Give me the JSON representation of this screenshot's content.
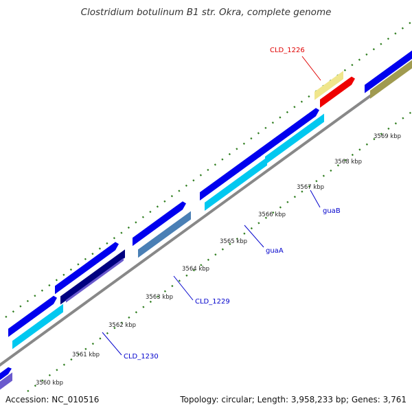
{
  "title": "Clostridium botulinum B1 str. Okra, complete genome",
  "accession": "Accession: NC_010516",
  "topology": "Topology: circular; Length: 3,958,233 bp; Genes: 3,761",
  "ruler": [
    "3560 kbp",
    "3561 kbp",
    "3562 kbp",
    "3563 kbp",
    "3564 kbp",
    "3565 kbp",
    "3566 kbp",
    "3567 kbp",
    "3568 kbp",
    "3569 kbp"
  ],
  "gene_labels": [
    {
      "name": "CLD_1226",
      "color": "#e00000"
    },
    {
      "name": "guaB",
      "color": "#0000cc"
    },
    {
      "name": "guaA",
      "color": "#0000cc"
    },
    {
      "name": "CLD_1229",
      "color": "#0000cc"
    },
    {
      "name": "CLD_1230",
      "color": "#0000cc"
    }
  ],
  "colors": {
    "backbone": "#888888",
    "cds_blue": "#0000ee",
    "cyan": "#00c8f0",
    "steelblue": "#4a7fb5",
    "navy": "#000080",
    "purple": "#6a5acd",
    "khaki": "#a09a50",
    "pale_yellow": "#f0e68c",
    "red": "#ee0000",
    "tick_green": "#2e7d1e"
  }
}
